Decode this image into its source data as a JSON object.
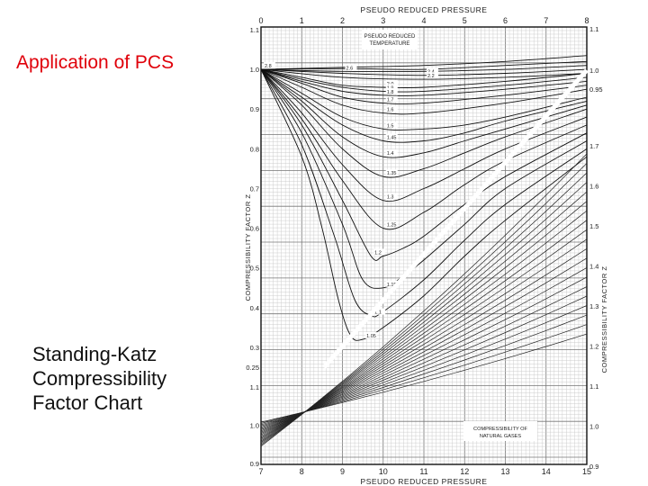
{
  "slide": {
    "title": "Application of PCS",
    "caption_lines": [
      "Standing-Katz",
      "Compressibility",
      "Factor Chart"
    ]
  },
  "chart_data": {
    "type": "line",
    "title": "COMPRESSIBILITY OF NATURAL GASES",
    "top_axis": {
      "label": "PSEUDO REDUCED PRESSURE",
      "ticks": [
        0,
        1,
        2,
        3,
        4,
        5,
        6,
        7,
        8
      ],
      "range": [
        0,
        8
      ]
    },
    "bottom_axis": {
      "label": "PSEUDO REDUCED PRESSURE",
      "ticks": [
        7,
        8,
        9,
        10,
        11,
        12,
        13,
        14,
        15
      ],
      "range": [
        7,
        15
      ]
    },
    "left_axis_upper": {
      "label": "COMPRESSIBILITY FACTOR Z",
      "range": [
        0.25,
        1.1
      ],
      "ticks": [
        {
          "v": 1.1,
          "t": "1.1"
        },
        {
          "v": 1.0,
          "t": "1.0"
        },
        {
          "v": 0.9,
          "t": "0.9"
        },
        {
          "v": 0.8,
          "t": "0.8"
        },
        {
          "v": 0.7,
          "t": "0.7"
        },
        {
          "v": 0.6,
          "t": "0.6"
        },
        {
          "v": 0.5,
          "t": "0.5"
        },
        {
          "v": 0.4,
          "t": "0.4"
        },
        {
          "v": 0.3,
          "t": "0.3"
        },
        {
          "v": 0.25,
          "t": "0.25"
        }
      ]
    },
    "left_axis_lower": {
      "range": [
        0.9,
        1.1
      ],
      "ticks": [
        {
          "v": 1.1,
          "t": "1.1"
        },
        {
          "v": 1.0,
          "t": "1.0"
        },
        {
          "v": 0.9,
          "t": "0.9"
        }
      ]
    },
    "right_axis": {
      "label": "COMPRESSIBILITY FACTOR Z",
      "range": [
        0.9,
        1.7
      ],
      "ticks": [
        {
          "v": 1.7,
          "t": "1.7"
        },
        {
          "v": 1.6,
          "t": "1.6"
        },
        {
          "v": 1.5,
          "t": "1.5"
        },
        {
          "v": 1.4,
          "t": "1.4"
        },
        {
          "v": 1.3,
          "t": "1.3"
        },
        {
          "v": 1.2,
          "t": "1.2"
        },
        {
          "v": 1.1,
          "t": "1.1"
        },
        {
          "v": 1.0,
          "t": "1.0"
        },
        {
          "v": 0.9,
          "t": "0.9"
        }
      ],
      "upper_ticks": [
        {
          "v": 1.1,
          "t": "1.1"
        },
        {
          "v": 1.0,
          "t": "1.0"
        },
        {
          "v": 0.95,
          "t": "0.95"
        }
      ]
    },
    "legend_label": "PSEUDO REDUCED TEMPERATURE",
    "series": [
      {
        "name": "3.0",
        "tpr": 3.0,
        "points": [
          [
            0,
            1.0
          ],
          [
            2,
            1.005
          ],
          [
            4,
            1.01
          ],
          [
            6,
            1.02
          ],
          [
            8,
            1.035
          ]
        ]
      },
      {
        "name": "2.8",
        "tpr": 2.8,
        "points": [
          [
            0,
            1.0
          ],
          [
            2,
            1.002
          ],
          [
            4,
            1.0
          ],
          [
            6,
            1.01
          ],
          [
            8,
            1.02
          ]
        ]
      },
      {
        "name": "2.6",
        "tpr": 2.6,
        "points": [
          [
            0,
            1.0
          ],
          [
            2,
            0.995
          ],
          [
            4,
            0.995
          ],
          [
            6,
            1.0
          ],
          [
            8,
            1.01
          ]
        ]
      },
      {
        "name": "2.4",
        "tpr": 2.4,
        "points": [
          [
            0,
            1.0
          ],
          [
            2,
            0.99
          ],
          [
            4,
            0.985
          ],
          [
            6,
            0.99
          ],
          [
            8,
            1.0
          ]
        ]
      },
      {
        "name": "2.2",
        "tpr": 2.2,
        "points": [
          [
            0,
            1.0
          ],
          [
            2,
            0.98
          ],
          [
            4,
            0.975
          ],
          [
            6,
            0.98
          ],
          [
            8,
            0.99
          ]
        ]
      },
      {
        "name": "2.0",
        "tpr": 2.0,
        "points": [
          [
            0,
            1.0
          ],
          [
            1,
            0.98
          ],
          [
            2,
            0.96
          ],
          [
            3,
            0.955
          ],
          [
            4,
            0.955
          ],
          [
            6,
            0.97
          ],
          [
            8,
            0.99
          ]
        ]
      },
      {
        "name": "1.9",
        "tpr": 1.9,
        "points": [
          [
            0,
            1.0
          ],
          [
            1,
            0.975
          ],
          [
            2,
            0.955
          ],
          [
            3,
            0.945
          ],
          [
            4,
            0.945
          ],
          [
            6,
            0.96
          ],
          [
            8,
            0.98
          ]
        ]
      },
      {
        "name": "1.8",
        "tpr": 1.8,
        "points": [
          [
            0,
            1.0
          ],
          [
            1,
            0.97
          ],
          [
            2,
            0.945
          ],
          [
            3,
            0.935
          ],
          [
            4,
            0.935
          ],
          [
            6,
            0.95
          ],
          [
            8,
            0.97
          ]
        ]
      },
      {
        "name": "1.7",
        "tpr": 1.7,
        "points": [
          [
            0,
            1.0
          ],
          [
            1,
            0.965
          ],
          [
            2,
            0.93
          ],
          [
            3,
            0.915
          ],
          [
            4,
            0.915
          ],
          [
            6,
            0.935
          ],
          [
            8,
            0.96
          ]
        ]
      },
      {
        "name": "1.6",
        "tpr": 1.6,
        "points": [
          [
            0,
            1.0
          ],
          [
            1,
            0.955
          ],
          [
            2,
            0.91
          ],
          [
            3,
            0.89
          ],
          [
            4,
            0.89
          ],
          [
            6,
            0.915
          ],
          [
            8,
            0.95
          ]
        ]
      },
      {
        "name": "1.5",
        "tpr": 1.5,
        "points": [
          [
            0,
            1.0
          ],
          [
            1,
            0.94
          ],
          [
            2,
            0.88
          ],
          [
            3,
            0.85
          ],
          [
            4,
            0.85
          ],
          [
            5,
            0.86
          ],
          [
            6,
            0.88
          ],
          [
            8,
            0.93
          ]
        ]
      },
      {
        "name": "1.45",
        "tpr": 1.45,
        "points": [
          [
            0,
            1.0
          ],
          [
            1,
            0.93
          ],
          [
            2,
            0.86
          ],
          [
            3,
            0.82
          ],
          [
            4,
            0.82
          ],
          [
            5,
            0.84
          ],
          [
            6,
            0.87
          ],
          [
            8,
            0.92
          ]
        ]
      },
      {
        "name": "1.4",
        "tpr": 1.4,
        "points": [
          [
            0,
            1.0
          ],
          [
            1,
            0.92
          ],
          [
            2,
            0.83
          ],
          [
            3,
            0.78
          ],
          [
            4,
            0.79
          ],
          [
            5,
            0.82
          ],
          [
            6,
            0.85
          ],
          [
            8,
            0.91
          ]
        ]
      },
      {
        "name": "1.35",
        "tpr": 1.35,
        "points": [
          [
            0,
            1.0
          ],
          [
            1,
            0.91
          ],
          [
            2,
            0.8
          ],
          [
            3,
            0.73
          ],
          [
            4,
            0.75
          ],
          [
            5,
            0.79
          ],
          [
            6,
            0.83
          ],
          [
            8,
            0.9
          ]
        ]
      },
      {
        "name": "1.3",
        "tpr": 1.3,
        "points": [
          [
            0,
            1.0
          ],
          [
            1,
            0.89
          ],
          [
            2,
            0.76
          ],
          [
            3,
            0.67
          ],
          [
            4,
            0.7
          ],
          [
            5,
            0.75
          ],
          [
            6,
            0.8
          ],
          [
            8,
            0.88
          ]
        ]
      },
      {
        "name": "1.25",
        "tpr": 1.25,
        "points": [
          [
            0,
            1.0
          ],
          [
            1,
            0.875
          ],
          [
            2,
            0.72
          ],
          [
            3,
            0.6
          ],
          [
            4,
            0.64
          ],
          [
            5,
            0.71
          ],
          [
            6,
            0.77
          ],
          [
            8,
            0.86
          ]
        ]
      },
      {
        "name": "1.2",
        "tpr": 1.2,
        "points": [
          [
            0,
            1.0
          ],
          [
            1,
            0.86
          ],
          [
            2,
            0.67
          ],
          [
            2.7,
            0.53
          ],
          [
            3,
            0.53
          ],
          [
            3.5,
            0.55
          ],
          [
            4,
            0.58
          ],
          [
            5,
            0.66
          ],
          [
            6,
            0.73
          ],
          [
            8,
            0.84
          ]
        ]
      },
      {
        "name": "1.15",
        "tpr": 1.15,
        "points": [
          [
            0,
            1.0
          ],
          [
            1,
            0.84
          ],
          [
            2,
            0.61
          ],
          [
            2.5,
            0.47
          ],
          [
            3,
            0.45
          ],
          [
            3.5,
            0.48
          ],
          [
            4,
            0.52
          ],
          [
            5,
            0.61
          ],
          [
            6,
            0.7
          ],
          [
            8,
            0.82
          ]
        ]
      },
      {
        "name": "1.1",
        "tpr": 1.1,
        "points": [
          [
            0,
            1.0
          ],
          [
            1,
            0.81
          ],
          [
            1.8,
            0.58
          ],
          [
            2.3,
            0.42
          ],
          [
            2.7,
            0.38
          ],
          [
            3,
            0.39
          ],
          [
            4,
            0.47
          ],
          [
            5,
            0.57
          ],
          [
            6,
            0.66
          ],
          [
            8,
            0.8
          ]
        ]
      },
      {
        "name": "1.05",
        "tpr": 1.05,
        "points": [
          [
            0,
            1.0
          ],
          [
            1,
            0.78
          ],
          [
            1.5,
            0.6
          ],
          [
            1.9,
            0.42
          ],
          [
            2.2,
            0.33
          ],
          [
            2.5,
            0.32
          ],
          [
            3,
            0.35
          ],
          [
            4,
            0.43
          ],
          [
            5,
            0.53
          ],
          [
            6,
            0.62
          ],
          [
            8,
            0.78
          ]
        ]
      }
    ]
  }
}
